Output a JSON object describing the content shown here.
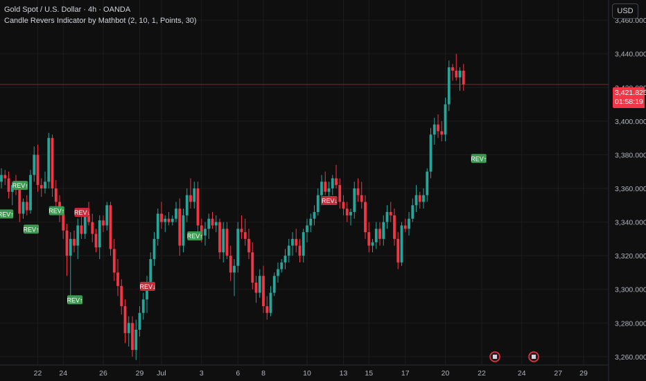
{
  "legend": {
    "symbol_line": "Gold Spot / U.S. Dollar · 4h · OANDA",
    "indicator_line": "Candle Revers Indicator by Mathbot (2, 10, 1, Points, 30)"
  },
  "currency_button": "USD",
  "last_price": {
    "value": "3,421.825",
    "countdown": "01:58:19"
  },
  "colors": {
    "up": "#26a69a",
    "down": "#f23645",
    "rev_up_bg": "#3d9950",
    "rev_down_bg": "#c62b3a",
    "bg": "#0f0f0f",
    "grid": "#1c1c1c",
    "last_line": "#7a2b31"
  },
  "icons": [
    "earnings-icon"
  ],
  "chart_data": {
    "type": "candlestick",
    "ylim": [
      3255,
      3472
    ],
    "y_ticks": [
      "3,460.000",
      "3,440.000",
      "3,420.000",
      "3,400.000",
      "3,380.000",
      "3,360.000",
      "3,340.000",
      "3,320.000",
      "3,300.000",
      "3,280.000",
      "3,260.000"
    ],
    "y_tick_values": [
      3460,
      3440,
      3420,
      3400,
      3380,
      3360,
      3340,
      3320,
      3300,
      3280,
      3260
    ],
    "x_ticks": [
      "22",
      "24",
      "26",
      "29",
      "Jul",
      "3",
      "6",
      "8",
      "10",
      "13",
      "15",
      "17",
      "20",
      "22",
      "24",
      "27",
      "29"
    ],
    "x_tick_index": [
      10,
      17,
      28,
      38,
      44,
      55,
      65,
      72,
      84,
      94,
      101,
      111,
      122,
      132,
      143,
      153,
      160
    ],
    "candles": [
      {
        "o": 3364,
        "h": 3372,
        "l": 3360,
        "c": 3368
      },
      {
        "o": 3368,
        "h": 3371,
        "l": 3362,
        "c": 3366
      },
      {
        "o": 3366,
        "h": 3370,
        "l": 3354,
        "c": 3358
      },
      {
        "o": 3358,
        "h": 3364,
        "l": 3350,
        "c": 3362
      },
      {
        "o": 3362,
        "h": 3368,
        "l": 3356,
        "c": 3360
      },
      {
        "o": 3360,
        "h": 3362,
        "l": 3340,
        "c": 3345
      },
      {
        "o": 3345,
        "h": 3354,
        "l": 3342,
        "c": 3352
      },
      {
        "o": 3352,
        "h": 3356,
        "l": 3344,
        "c": 3347
      },
      {
        "o": 3347,
        "h": 3371,
        "l": 3345,
        "c": 3368
      },
      {
        "o": 3368,
        "h": 3385,
        "l": 3364,
        "c": 3380
      },
      {
        "o": 3380,
        "h": 3386,
        "l": 3358,
        "c": 3362
      },
      {
        "o": 3362,
        "h": 3366,
        "l": 3355,
        "c": 3360
      },
      {
        "o": 3360,
        "h": 3370,
        "l": 3357,
        "c": 3364
      },
      {
        "o": 3364,
        "h": 3393,
        "l": 3360,
        "c": 3390
      },
      {
        "o": 3390,
        "h": 3392,
        "l": 3355,
        "c": 3360
      },
      {
        "o": 3360,
        "h": 3365,
        "l": 3348,
        "c": 3352
      },
      {
        "o": 3352,
        "h": 3356,
        "l": 3340,
        "c": 3345
      },
      {
        "o": 3345,
        "h": 3348,
        "l": 3330,
        "c": 3335
      },
      {
        "o": 3335,
        "h": 3339,
        "l": 3308,
        "c": 3320
      },
      {
        "o": 3320,
        "h": 3334,
        "l": 3296,
        "c": 3330
      },
      {
        "o": 3330,
        "h": 3335,
        "l": 3322,
        "c": 3326
      },
      {
        "o": 3326,
        "h": 3342,
        "l": 3318,
        "c": 3338
      },
      {
        "o": 3338,
        "h": 3345,
        "l": 3330,
        "c": 3333
      },
      {
        "o": 3333,
        "h": 3348,
        "l": 3330,
        "c": 3344
      },
      {
        "o": 3344,
        "h": 3352,
        "l": 3338,
        "c": 3340
      },
      {
        "o": 3340,
        "h": 3345,
        "l": 3328,
        "c": 3333
      },
      {
        "o": 3333,
        "h": 3336,
        "l": 3322,
        "c": 3325
      },
      {
        "o": 3325,
        "h": 3344,
        "l": 3318,
        "c": 3341
      },
      {
        "o": 3341,
        "h": 3344,
        "l": 3334,
        "c": 3338
      },
      {
        "o": 3338,
        "h": 3352,
        "l": 3335,
        "c": 3350
      },
      {
        "o": 3350,
        "h": 3352,
        "l": 3320,
        "c": 3324
      },
      {
        "o": 3324,
        "h": 3330,
        "l": 3305,
        "c": 3310
      },
      {
        "o": 3310,
        "h": 3318,
        "l": 3296,
        "c": 3302
      },
      {
        "o": 3302,
        "h": 3306,
        "l": 3285,
        "c": 3290
      },
      {
        "o": 3290,
        "h": 3294,
        "l": 3268,
        "c": 3274
      },
      {
        "o": 3274,
        "h": 3284,
        "l": 3266,
        "c": 3280
      },
      {
        "o": 3280,
        "h": 3284,
        "l": 3260,
        "c": 3264
      },
      {
        "o": 3264,
        "h": 3282,
        "l": 3258,
        "c": 3276
      },
      {
        "o": 3276,
        "h": 3290,
        "l": 3272,
        "c": 3286
      },
      {
        "o": 3286,
        "h": 3298,
        "l": 3282,
        "c": 3294
      },
      {
        "o": 3294,
        "h": 3308,
        "l": 3286,
        "c": 3304
      },
      {
        "o": 3304,
        "h": 3322,
        "l": 3300,
        "c": 3318
      },
      {
        "o": 3318,
        "h": 3334,
        "l": 3314,
        "c": 3330
      },
      {
        "o": 3330,
        "h": 3348,
        "l": 3326,
        "c": 3345
      },
      {
        "o": 3345,
        "h": 3352,
        "l": 3336,
        "c": 3340
      },
      {
        "o": 3340,
        "h": 3344,
        "l": 3334,
        "c": 3342
      },
      {
        "o": 3342,
        "h": 3346,
        "l": 3338,
        "c": 3340
      },
      {
        "o": 3340,
        "h": 3344,
        "l": 3338,
        "c": 3342
      },
      {
        "o": 3342,
        "h": 3352,
        "l": 3340,
        "c": 3348
      },
      {
        "o": 3348,
        "h": 3354,
        "l": 3320,
        "c": 3326
      },
      {
        "o": 3326,
        "h": 3348,
        "l": 3322,
        "c": 3344
      },
      {
        "o": 3344,
        "h": 3360,
        "l": 3340,
        "c": 3356
      },
      {
        "o": 3356,
        "h": 3366,
        "l": 3348,
        "c": 3352
      },
      {
        "o": 3352,
        "h": 3364,
        "l": 3348,
        "c": 3360
      },
      {
        "o": 3360,
        "h": 3364,
        "l": 3334,
        "c": 3338
      },
      {
        "o": 3338,
        "h": 3342,
        "l": 3328,
        "c": 3332
      },
      {
        "o": 3332,
        "h": 3340,
        "l": 3326,
        "c": 3336
      },
      {
        "o": 3336,
        "h": 3345,
        "l": 3330,
        "c": 3342
      },
      {
        "o": 3342,
        "h": 3346,
        "l": 3336,
        "c": 3338
      },
      {
        "o": 3338,
        "h": 3344,
        "l": 3334,
        "c": 3340
      },
      {
        "o": 3340,
        "h": 3342,
        "l": 3318,
        "c": 3322
      },
      {
        "o": 3322,
        "h": 3340,
        "l": 3316,
        "c": 3336
      },
      {
        "o": 3336,
        "h": 3340,
        "l": 3318,
        "c": 3320
      },
      {
        "o": 3320,
        "h": 3326,
        "l": 3305,
        "c": 3310
      },
      {
        "o": 3310,
        "h": 3318,
        "l": 3296,
        "c": 3314
      },
      {
        "o": 3314,
        "h": 3340,
        "l": 3310,
        "c": 3336
      },
      {
        "o": 3336,
        "h": 3344,
        "l": 3330,
        "c": 3334
      },
      {
        "o": 3334,
        "h": 3342,
        "l": 3326,
        "c": 3330
      },
      {
        "o": 3330,
        "h": 3336,
        "l": 3318,
        "c": 3322
      },
      {
        "o": 3322,
        "h": 3328,
        "l": 3300,
        "c": 3304
      },
      {
        "o": 3304,
        "h": 3308,
        "l": 3292,
        "c": 3298
      },
      {
        "o": 3298,
        "h": 3312,
        "l": 3295,
        "c": 3308
      },
      {
        "o": 3308,
        "h": 3314,
        "l": 3286,
        "c": 3290
      },
      {
        "o": 3290,
        "h": 3296,
        "l": 3282,
        "c": 3286
      },
      {
        "o": 3286,
        "h": 3302,
        "l": 3284,
        "c": 3298
      },
      {
        "o": 3298,
        "h": 3310,
        "l": 3296,
        "c": 3308
      },
      {
        "o": 3308,
        "h": 3316,
        "l": 3304,
        "c": 3312
      },
      {
        "o": 3312,
        "h": 3318,
        "l": 3310,
        "c": 3316
      },
      {
        "o": 3316,
        "h": 3324,
        "l": 3312,
        "c": 3320
      },
      {
        "o": 3320,
        "h": 3330,
        "l": 3316,
        "c": 3326
      },
      {
        "o": 3326,
        "h": 3334,
        "l": 3320,
        "c": 3330
      },
      {
        "o": 3330,
        "h": 3336,
        "l": 3322,
        "c": 3326
      },
      {
        "o": 3326,
        "h": 3330,
        "l": 3316,
        "c": 3320
      },
      {
        "o": 3320,
        "h": 3336,
        "l": 3316,
        "c": 3334
      },
      {
        "o": 3334,
        "h": 3342,
        "l": 3328,
        "c": 3338
      },
      {
        "o": 3338,
        "h": 3345,
        "l": 3334,
        "c": 3342
      },
      {
        "o": 3342,
        "h": 3350,
        "l": 3338,
        "c": 3346
      },
      {
        "o": 3346,
        "h": 3360,
        "l": 3344,
        "c": 3356
      },
      {
        "o": 3356,
        "h": 3368,
        "l": 3350,
        "c": 3364
      },
      {
        "o": 3364,
        "h": 3370,
        "l": 3356,
        "c": 3358
      },
      {
        "o": 3358,
        "h": 3364,
        "l": 3354,
        "c": 3360
      },
      {
        "o": 3360,
        "h": 3368,
        "l": 3356,
        "c": 3366
      },
      {
        "o": 3366,
        "h": 3374,
        "l": 3360,
        "c": 3362
      },
      {
        "o": 3362,
        "h": 3366,
        "l": 3348,
        "c": 3352
      },
      {
        "o": 3352,
        "h": 3356,
        "l": 3344,
        "c": 3348
      },
      {
        "o": 3348,
        "h": 3352,
        "l": 3340,
        "c": 3344
      },
      {
        "o": 3344,
        "h": 3348,
        "l": 3338,
        "c": 3346
      },
      {
        "o": 3346,
        "h": 3364,
        "l": 3342,
        "c": 3360
      },
      {
        "o": 3360,
        "h": 3366,
        "l": 3352,
        "c": 3356
      },
      {
        "o": 3356,
        "h": 3364,
        "l": 3348,
        "c": 3352
      },
      {
        "o": 3352,
        "h": 3356,
        "l": 3330,
        "c": 3334
      },
      {
        "o": 3334,
        "h": 3340,
        "l": 3322,
        "c": 3326
      },
      {
        "o": 3326,
        "h": 3330,
        "l": 3322,
        "c": 3328
      },
      {
        "o": 3328,
        "h": 3340,
        "l": 3324,
        "c": 3336
      },
      {
        "o": 3336,
        "h": 3340,
        "l": 3326,
        "c": 3330
      },
      {
        "o": 3330,
        "h": 3344,
        "l": 3326,
        "c": 3340
      },
      {
        "o": 3340,
        "h": 3350,
        "l": 3336,
        "c": 3346
      },
      {
        "o": 3346,
        "h": 3352,
        "l": 3340,
        "c": 3344
      },
      {
        "o": 3344,
        "h": 3348,
        "l": 3326,
        "c": 3330
      },
      {
        "o": 3330,
        "h": 3334,
        "l": 3312,
        "c": 3316
      },
      {
        "o": 3316,
        "h": 3340,
        "l": 3314,
        "c": 3338
      },
      {
        "o": 3338,
        "h": 3342,
        "l": 3334,
        "c": 3336
      },
      {
        "o": 3336,
        "h": 3346,
        "l": 3332,
        "c": 3342
      },
      {
        "o": 3342,
        "h": 3354,
        "l": 3340,
        "c": 3350
      },
      {
        "o": 3350,
        "h": 3362,
        "l": 3346,
        "c": 3356
      },
      {
        "o": 3356,
        "h": 3358,
        "l": 3348,
        "c": 3352
      },
      {
        "o": 3352,
        "h": 3360,
        "l": 3348,
        "c": 3356
      },
      {
        "o": 3356,
        "h": 3372,
        "l": 3352,
        "c": 3370
      },
      {
        "o": 3370,
        "h": 3396,
        "l": 3366,
        "c": 3392
      },
      {
        "o": 3392,
        "h": 3402,
        "l": 3386,
        "c": 3398
      },
      {
        "o": 3398,
        "h": 3404,
        "l": 3390,
        "c": 3394
      },
      {
        "o": 3394,
        "h": 3400,
        "l": 3388,
        "c": 3392
      },
      {
        "o": 3392,
        "h": 3414,
        "l": 3388,
        "c": 3410
      },
      {
        "o": 3410,
        "h": 3436,
        "l": 3406,
        "c": 3432
      },
      {
        "o": 3432,
        "h": 3434,
        "l": 3424,
        "c": 3430
      },
      {
        "o": 3430,
        "h": 3440,
        "l": 3424,
        "c": 3426
      },
      {
        "o": 3426,
        "h": 3432,
        "l": 3418,
        "c": 3430
      },
      {
        "o": 3430,
        "h": 3434,
        "l": 3418,
        "c": 3421.8
      }
    ],
    "markers": [
      {
        "label": "REV↑",
        "index": 1,
        "price": 3345,
        "kind": "up"
      },
      {
        "label": "REV↑",
        "index": 5,
        "price": 3362,
        "kind": "up"
      },
      {
        "label": "REV↑",
        "index": 8,
        "price": 3336,
        "kind": "up"
      },
      {
        "label": "REV↑",
        "index": 15,
        "price": 3347,
        "kind": "up"
      },
      {
        "label": "REV↓",
        "index": 22,
        "price": 3346,
        "kind": "down"
      },
      {
        "label": "REV↑",
        "index": 20,
        "price": 3294,
        "kind": "up"
      },
      {
        "label": "REV↓",
        "index": 40,
        "price": 3302,
        "kind": "down"
      },
      {
        "label": "REV↑",
        "index": 53,
        "price": 3332,
        "kind": "up"
      },
      {
        "label": "REV↓",
        "index": 90,
        "price": 3353,
        "kind": "down"
      },
      {
        "label": "REV↑",
        "index": 131,
        "price": 3378,
        "kind": "up"
      }
    ]
  }
}
